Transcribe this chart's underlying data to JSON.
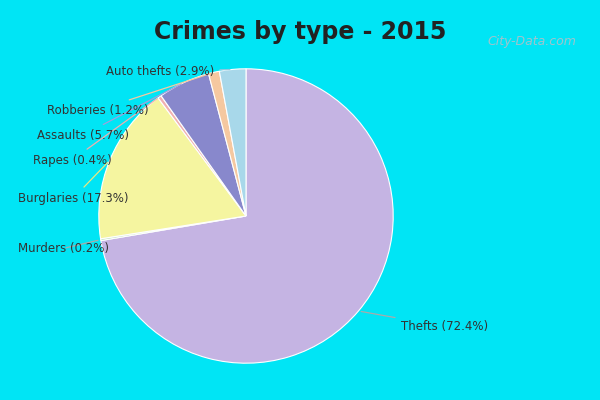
{
  "title": "Crimes by type - 2015",
  "labels": [
    "Thefts",
    "Burglaries",
    "Assaults",
    "Auto thefts",
    "Robberies",
    "Rapes",
    "Murders"
  ],
  "values": [
    72.4,
    17.3,
    5.7,
    2.9,
    1.2,
    0.4,
    0.2
  ],
  "colors": [
    "#c5b4e3",
    "#f5f5a0",
    "#8888cc",
    "#a8d8ea",
    "#f5c8a0",
    "#f0b0b0",
    "#b8ddb8"
  ],
  "bg_cyan": "#00e5f5",
  "bg_green": "#c5e8d0",
  "title_fontsize": 17,
  "label_fontsize": 9,
  "watermark": "City-Data.com",
  "order": [
    0,
    6,
    1,
    5,
    2,
    4,
    3
  ]
}
